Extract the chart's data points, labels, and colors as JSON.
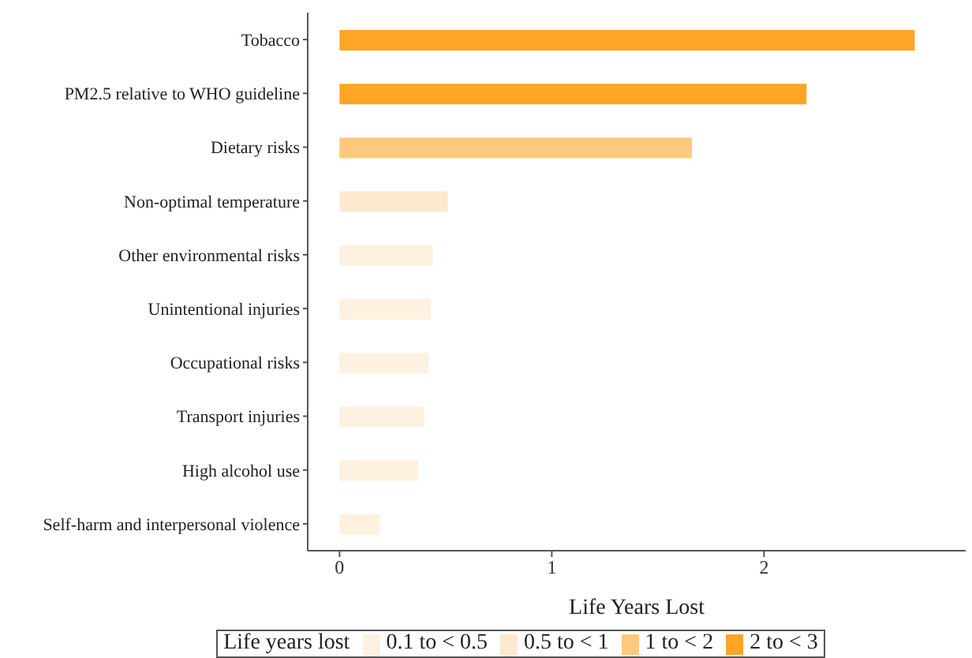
{
  "chart_data": {
    "type": "bar",
    "orientation": "horizontal",
    "stacked": true,
    "categories": [
      "Tobacco",
      "PM2.5 relative to WHO guideline",
      "Dietary risks",
      "Non-optimal temperature",
      "Other environmental risks",
      "Unintentional injuries",
      "Occupational risks",
      "Transport injuries",
      "High alcohol use",
      "Self-harm and interpersonal violence"
    ],
    "series": [
      {
        "name": "0.1 to < 0.5",
        "color": "#fff1e0",
        "values": [
          null,
          null,
          null,
          null,
          0.44,
          0.43,
          0.42,
          0.4,
          0.37,
          0.19
        ]
      },
      {
        "name": "0.5 to < 1",
        "color": "#fde9cf",
        "values": [
          null,
          null,
          null,
          0.51,
          null,
          null,
          null,
          null,
          null,
          null
        ]
      },
      {
        "name": "1 to < 2",
        "color": "#fec97c",
        "values": [
          null,
          null,
          1.66,
          null,
          null,
          null,
          null,
          null,
          null,
          null
        ]
      },
      {
        "name": "2 to < 3",
        "color": "#ffa526",
        "values": [
          2.71,
          2.2,
          null,
          null,
          null,
          null,
          null,
          null,
          null,
          null
        ]
      }
    ],
    "xlabel": "Life Years Lost",
    "legend_title": "Life years lost",
    "legend": "bottom",
    "xlim": [
      -0.15,
      2.95
    ],
    "xticks": [
      0,
      1,
      2
    ]
  }
}
